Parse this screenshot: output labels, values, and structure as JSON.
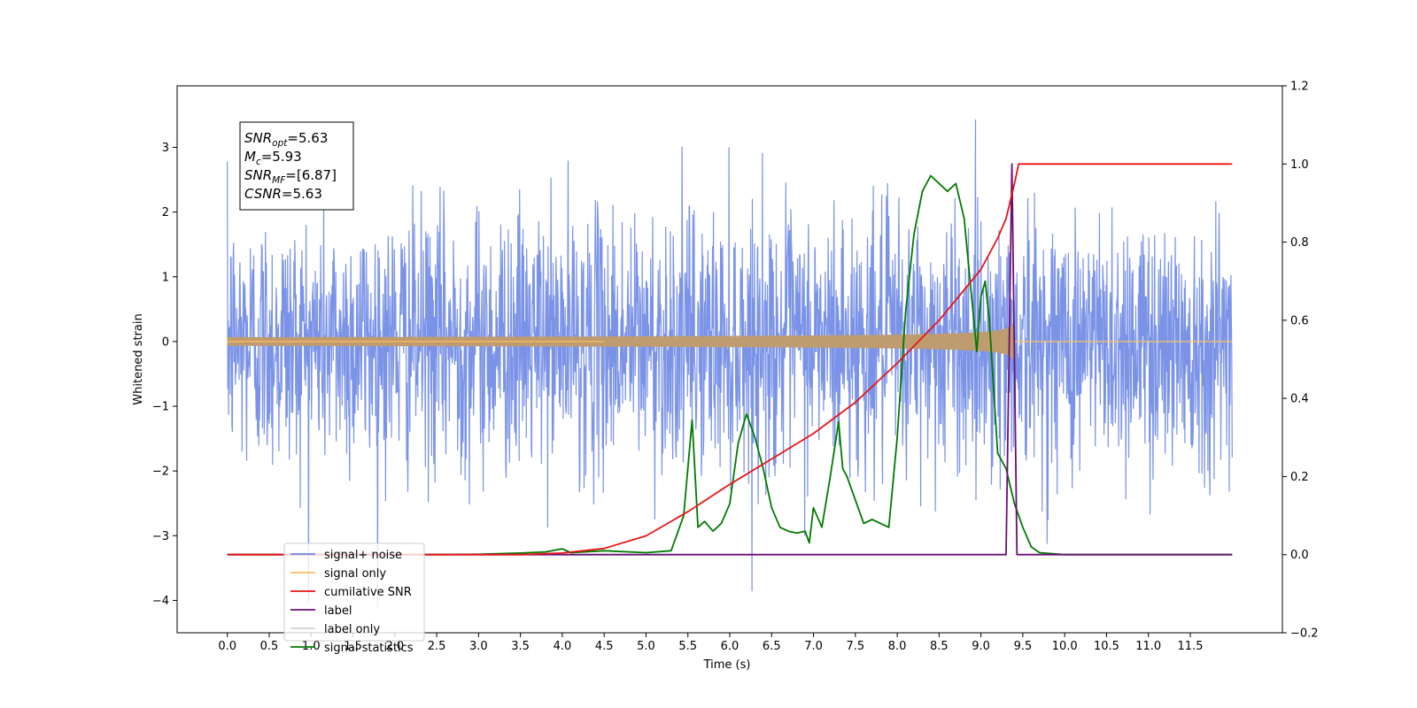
{
  "chart_data": {
    "type": "line",
    "xlabel": "Time (s)",
    "ylabel": "Whitened strain",
    "xlim": [
      -0.6,
      12.6
    ],
    "ylim": [
      -4.5,
      3.95
    ],
    "y2lim": [
      -0.2,
      1.2
    ],
    "grid": false,
    "legend_position": "lower-left",
    "x_ticks": [
      "0.0",
      "0.5",
      "1.0",
      "1.5",
      "2.0",
      "2.5",
      "3.0",
      "3.5",
      "4.0",
      "4.5",
      "5.0",
      "5.5",
      "6.0",
      "6.5",
      "7.0",
      "7.5",
      "8.0",
      "8.5",
      "9.0",
      "9.5",
      "10.0",
      "10.5",
      "11.0",
      "11.5"
    ],
    "y_ticks": [
      "3",
      "2",
      "1",
      "0",
      "−1",
      "−2",
      "−3",
      "−4"
    ],
    "y2_ticks": [
      "1.2",
      "1.0",
      "0.8",
      "0.6",
      "0.4",
      "0.2",
      "0.0",
      "−0.2"
    ],
    "annotation": {
      "lines": [
        {
          "base": "SNR",
          "sub": "opt",
          "rest": "=5.63"
        },
        {
          "base": "M",
          "sub": "c",
          "rest": "=5.93"
        },
        {
          "base": "SNR",
          "sub": "MF",
          "rest": "=[6.87]"
        },
        {
          "base": "CSNR",
          "sub": "",
          "rest": "=5.63"
        }
      ]
    },
    "series": [
      {
        "name": "signal+ noise",
        "color": "#6b87e4",
        "axis": "left",
        "kind": "noise",
        "t_start": 0.0,
        "t_end": 12.0,
        "amplitude_std": 1.0
      },
      {
        "name": "signal only",
        "color": "#ffbf5e",
        "axis": "left",
        "kind": "chirp",
        "t_start": 0.0,
        "t_merge": 9.4,
        "amplitude_at_merge": 0.33
      },
      {
        "name": "cumilative SNR",
        "color": "#e81515",
        "axis": "right",
        "x": [
          0.0,
          3.5,
          4.0,
          4.5,
          5.0,
          5.5,
          6.0,
          6.5,
          7.0,
          7.5,
          8.0,
          8.5,
          9.0,
          9.2,
          9.3,
          9.4,
          9.45,
          12.0
        ],
        "y": [
          0.0,
          0.0,
          0.004,
          0.016,
          0.048,
          0.11,
          0.18,
          0.245,
          0.31,
          0.39,
          0.49,
          0.6,
          0.73,
          0.81,
          0.86,
          0.95,
          1.0,
          1.0
        ]
      },
      {
        "name": "label",
        "color": "#6a0f75",
        "axis": "right",
        "x": [
          0.0,
          9.3,
          9.37,
          9.43,
          12.0
        ],
        "y": [
          0.0,
          0.0,
          1.0,
          0.0,
          0.0
        ]
      },
      {
        "name": "label only",
        "color": "#d2d2d2",
        "axis": "right",
        "x": [],
        "y": []
      },
      {
        "name": "signal statistics",
        "color": "#007a00",
        "axis": "right",
        "x": [
          0.0,
          0.5,
          1.0,
          1.5,
          2.0,
          2.5,
          3.0,
          3.5,
          3.8,
          4.0,
          4.1,
          4.5,
          5.0,
          5.3,
          5.45,
          5.55,
          5.62,
          5.7,
          5.8,
          5.9,
          6.0,
          6.1,
          6.2,
          6.3,
          6.4,
          6.5,
          6.6,
          6.7,
          6.8,
          6.9,
          6.95,
          7.0,
          7.1,
          7.2,
          7.3,
          7.35,
          7.4,
          7.5,
          7.6,
          7.7,
          7.8,
          7.9,
          8.0,
          8.1,
          8.2,
          8.3,
          8.4,
          8.5,
          8.6,
          8.7,
          8.8,
          8.95,
          9.0,
          9.05,
          9.1,
          9.2,
          9.3,
          9.4,
          9.5,
          9.6,
          9.7,
          10.0,
          11.0,
          12.0
        ],
        "y": [
          0.0,
          0.0,
          0.0,
          0.0,
          0.0,
          0.0,
          0.001,
          0.004,
          0.007,
          0.015,
          0.005,
          0.01,
          0.005,
          0.01,
          0.1,
          0.345,
          0.07,
          0.085,
          0.06,
          0.08,
          0.13,
          0.285,
          0.36,
          0.3,
          0.22,
          0.12,
          0.07,
          0.06,
          0.055,
          0.06,
          0.03,
          0.12,
          0.07,
          0.2,
          0.34,
          0.22,
          0.2,
          0.14,
          0.08,
          0.09,
          0.08,
          0.07,
          0.3,
          0.62,
          0.82,
          0.93,
          0.97,
          0.95,
          0.93,
          0.95,
          0.86,
          0.52,
          0.66,
          0.7,
          0.6,
          0.26,
          0.22,
          0.13,
          0.07,
          0.02,
          0.005,
          0.0,
          0.0,
          0.0
        ]
      }
    ]
  }
}
